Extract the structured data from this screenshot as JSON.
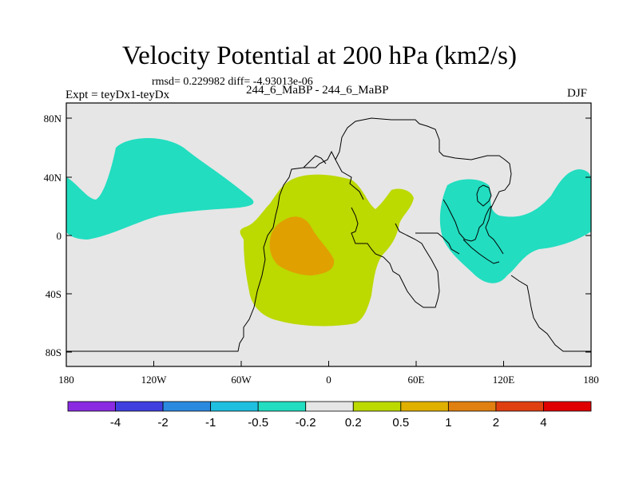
{
  "title": "Velocity Potential at 200 hPa (km2/s)",
  "stats": "rmsd= 0.229982 diff= -4.93013e-06",
  "left_label": "Expt = teyDx1-teyDx",
  "center_label": "244_6_MaBP - 244_6_MaBP",
  "right_label": "DJF",
  "map": {
    "background_color": "#e6e6e6",
    "lat_ticks": [
      "80N",
      "40N",
      "0",
      "40S",
      "80S"
    ],
    "lon_ticks": [
      "180",
      "120W",
      "60W",
      "0",
      "60E",
      "120E",
      "180"
    ]
  },
  "legend": {
    "colors": [
      "#8a2be2",
      "#3f3fe0",
      "#2b8ae0",
      "#1fbfe0",
      "#22ddc0",
      "#e6e6e6",
      "#bcd900",
      "#e0b000",
      "#e08010",
      "#e04010",
      "#e00000"
    ],
    "labels": [
      "-4",
      "-2",
      "-1",
      "-0.5",
      "-0.2",
      "0.2",
      "0.5",
      "1",
      "2",
      "4"
    ]
  },
  "fields": {
    "negative_color": "#22ddc0",
    "positive_color": "#bcd900",
    "strong_positive_color": "#e0a000"
  }
}
